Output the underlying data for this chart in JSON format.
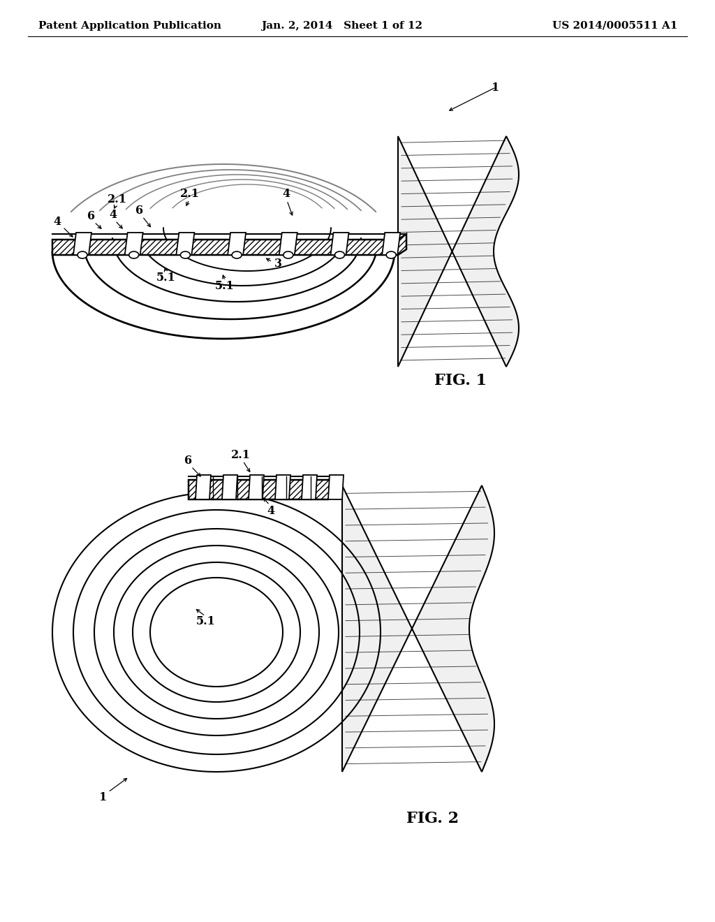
{
  "background_color": "#ffffff",
  "header_left": "Patent Application Publication",
  "header_center": "Jan. 2, 2014   Sheet 1 of 12",
  "header_right": "US 2014/0005511 A1",
  "header_fontsize": 11,
  "fig1_label": "FIG. 1",
  "fig2_label": "FIG. 2",
  "line_color": "#000000",
  "label_fontsize": 11.5,
  "fig_label_fontsize": 16
}
